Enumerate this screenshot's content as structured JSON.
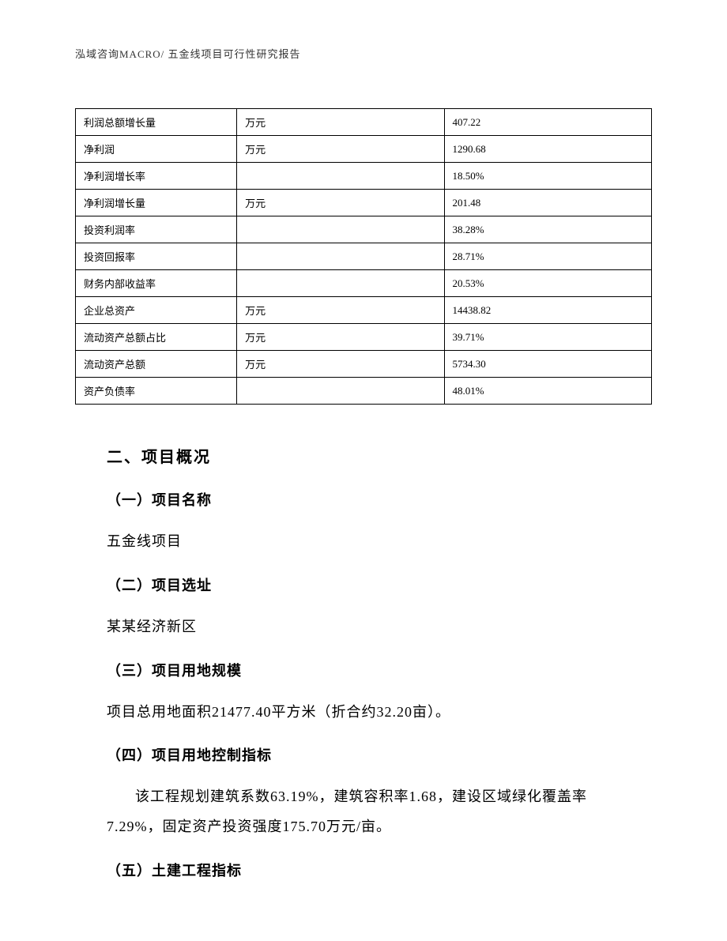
{
  "header": {
    "text": "泓域咨询MACRO/    五金线项目可行性研究报告"
  },
  "table": {
    "rows": [
      {
        "label": "利润总额增长量",
        "unit": "万元",
        "value": "407.22"
      },
      {
        "label": "净利润",
        "unit": "万元",
        "value": "1290.68"
      },
      {
        "label": "净利润增长率",
        "unit": "",
        "value": "18.50%"
      },
      {
        "label": "净利润增长量",
        "unit": "万元",
        "value": "201.48"
      },
      {
        "label": "投资利润率",
        "unit": "",
        "value": "38.28%"
      },
      {
        "label": "投资回报率",
        "unit": "",
        "value": "28.71%"
      },
      {
        "label": "财务内部收益率",
        "unit": "",
        "value": "20.53%"
      },
      {
        "label": "企业总资产",
        "unit": "万元",
        "value": "14438.82"
      },
      {
        "label": "流动资产总额占比",
        "unit": "万元",
        "value": "39.71%"
      },
      {
        "label": "流动资产总额",
        "unit": "万元",
        "value": "5734.30"
      },
      {
        "label": "资产负债率",
        "unit": "",
        "value": "48.01%"
      }
    ]
  },
  "sections": {
    "main_title": "二、项目概况",
    "sub1_title": "（一）项目名称",
    "sub1_text": "五金线项目",
    "sub2_title": "（二）项目选址",
    "sub2_text": "某某经济新区",
    "sub3_title": "（三）项目用地规模",
    "sub3_text": "项目总用地面积21477.40平方米（折合约32.20亩）。",
    "sub4_title": "（四）项目用地控制指标",
    "sub4_text": "该工程规划建筑系数63.19%，建筑容积率1.68，建设区域绿化覆盖率7.29%，固定资产投资强度175.70万元/亩。",
    "sub5_title": "（五）土建工程指标"
  }
}
